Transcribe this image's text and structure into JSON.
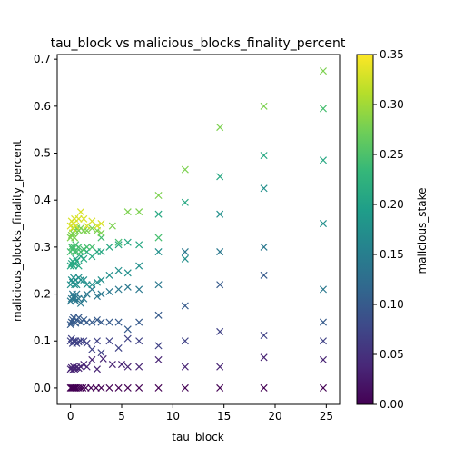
{
  "chart_data": {
    "type": "scatter",
    "title": "tau_block vs malicious_blocks_finality_percent",
    "xlabel": "tau_block",
    "ylabel": "malicious_blocks_finality_percent",
    "xlim": [
      -1.3,
      26.3
    ],
    "ylim": [
      -0.035,
      0.71
    ],
    "xticks": [
      0,
      5,
      10,
      15,
      20,
      25
    ],
    "xtick_labels": [
      "0",
      "5",
      "10",
      "15",
      "20",
      "25"
    ],
    "yticks": [
      0.0,
      0.1,
      0.2,
      0.3,
      0.4,
      0.5,
      0.6,
      0.7
    ],
    "ytick_labels": [
      "0.0",
      "0.1",
      "0.2",
      "0.3",
      "0.4",
      "0.5",
      "0.6",
      "0.7"
    ],
    "marker": "x",
    "grid": false,
    "colorbar": {
      "label": "malicious_stake",
      "colormap": "viridis",
      "range": [
        0.0,
        0.35
      ],
      "ticks": [
        0.0,
        0.05,
        0.1,
        0.15,
        0.2,
        0.25,
        0.3,
        0.35
      ],
      "tick_labels": [
        "0.00",
        "0.05",
        "0.10",
        "0.15",
        "0.20",
        "0.25",
        "0.30",
        "0.35"
      ]
    },
    "colormap_stops": [
      "#440154",
      "#482878",
      "#3e4989",
      "#31688e",
      "#26828e",
      "#1f9e89",
      "#35b779",
      "#6ece58",
      "#b5de2b",
      "#fde725"
    ],
    "series": [
      {
        "malicious_stake": 0.0,
        "points": [
          [
            0.0,
            0.0
          ],
          [
            0.1,
            0.0
          ],
          [
            0.2,
            0.0
          ],
          [
            0.3,
            0.0
          ],
          [
            0.4,
            0.0
          ],
          [
            0.5,
            0.0
          ],
          [
            0.6,
            0.0
          ],
          [
            0.8,
            0.0
          ],
          [
            1.0,
            0.0
          ],
          [
            1.2,
            0.0
          ],
          [
            1.5,
            0.0
          ],
          [
            2.0,
            0.0
          ],
          [
            2.5,
            0.0
          ],
          [
            3.0,
            0.0
          ],
          [
            3.8,
            0.0
          ],
          [
            4.7,
            0.0
          ],
          [
            5.6,
            0.0
          ],
          [
            6.7,
            0.0
          ],
          [
            8.6,
            0.0
          ],
          [
            11.2,
            0.0
          ],
          [
            14.6,
            0.0
          ],
          [
            18.9,
            0.0
          ],
          [
            24.7,
            0.0
          ]
        ]
      },
      {
        "malicious_stake": 0.035,
        "points": [
          [
            0.0,
            0.04
          ],
          [
            0.1,
            0.043
          ],
          [
            0.2,
            0.038
          ],
          [
            0.3,
            0.045
          ],
          [
            0.4,
            0.04
          ],
          [
            0.5,
            0.042
          ],
          [
            0.6,
            0.044
          ],
          [
            0.8,
            0.042
          ],
          [
            1.0,
            0.045
          ],
          [
            1.3,
            0.05
          ],
          [
            1.6,
            0.045
          ],
          [
            2.1,
            0.06
          ],
          [
            2.6,
            0.04
          ],
          [
            3.2,
            0.062
          ],
          [
            4.1,
            0.05
          ],
          [
            5.0,
            0.05
          ],
          [
            5.6,
            0.045
          ],
          [
            6.7,
            0.045
          ],
          [
            8.6,
            0.06
          ],
          [
            11.2,
            0.045
          ],
          [
            14.6,
            0.045
          ],
          [
            18.9,
            0.065
          ],
          [
            24.7,
            0.06
          ]
        ]
      },
      {
        "malicious_stake": 0.07,
        "points": [
          [
            0.0,
            0.1
          ],
          [
            0.1,
            0.105
          ],
          [
            0.2,
            0.095
          ],
          [
            0.3,
            0.1
          ],
          [
            0.4,
            0.098
          ],
          [
            0.5,
            0.1
          ],
          [
            0.6,
            0.095
          ],
          [
            0.8,
            0.098
          ],
          [
            1.0,
            0.1
          ],
          [
            1.3,
            0.1
          ],
          [
            1.6,
            0.095
          ],
          [
            2.1,
            0.082
          ],
          [
            2.6,
            0.1
          ],
          [
            3.0,
            0.075
          ],
          [
            3.8,
            0.1
          ],
          [
            4.7,
            0.085
          ],
          [
            5.6,
            0.105
          ],
          [
            6.7,
            0.1
          ],
          [
            8.6,
            0.09
          ],
          [
            11.2,
            0.1
          ],
          [
            14.6,
            0.12
          ],
          [
            18.9,
            0.112
          ],
          [
            24.7,
            0.1
          ]
        ]
      },
      {
        "malicious_stake": 0.1,
        "points": [
          [
            0.0,
            0.135
          ],
          [
            0.1,
            0.14
          ],
          [
            0.2,
            0.145
          ],
          [
            0.3,
            0.15
          ],
          [
            0.4,
            0.14
          ],
          [
            0.5,
            0.138
          ],
          [
            0.6,
            0.145
          ],
          [
            0.8,
            0.15
          ],
          [
            1.0,
            0.14
          ],
          [
            1.3,
            0.145
          ],
          [
            1.6,
            0.14
          ],
          [
            2.1,
            0.14
          ],
          [
            2.6,
            0.145
          ],
          [
            3.0,
            0.14
          ],
          [
            3.8,
            0.14
          ],
          [
            4.7,
            0.14
          ],
          [
            5.6,
            0.125
          ],
          [
            6.7,
            0.14
          ],
          [
            8.6,
            0.155
          ],
          [
            11.2,
            0.175
          ],
          [
            14.6,
            0.22
          ],
          [
            18.9,
            0.24
          ],
          [
            24.7,
            0.14
          ]
        ]
      },
      {
        "malicious_stake": 0.14,
        "points": [
          [
            0.0,
            0.185
          ],
          [
            0.1,
            0.19
          ],
          [
            0.2,
            0.2
          ],
          [
            0.3,
            0.195
          ],
          [
            0.4,
            0.19
          ],
          [
            0.5,
            0.185
          ],
          [
            0.6,
            0.2
          ],
          [
            0.8,
            0.19
          ],
          [
            1.0,
            0.18
          ],
          [
            1.3,
            0.19
          ],
          [
            1.6,
            0.2
          ],
          [
            2.1,
            0.21
          ],
          [
            2.6,
            0.195
          ],
          [
            3.0,
            0.2
          ],
          [
            3.8,
            0.205
          ],
          [
            4.7,
            0.21
          ],
          [
            5.6,
            0.215
          ],
          [
            6.7,
            0.21
          ],
          [
            8.6,
            0.22
          ],
          [
            11.2,
            0.29
          ],
          [
            14.6,
            0.29
          ],
          [
            18.9,
            0.3
          ],
          [
            24.7,
            0.21
          ]
        ]
      },
      {
        "malicious_stake": 0.175,
        "points": [
          [
            0.0,
            0.22
          ],
          [
            0.1,
            0.23
          ],
          [
            0.2,
            0.225
          ],
          [
            0.3,
            0.235
          ],
          [
            0.4,
            0.22
          ],
          [
            0.5,
            0.23
          ],
          [
            0.6,
            0.22
          ],
          [
            0.8,
            0.235
          ],
          [
            1.0,
            0.23
          ],
          [
            1.3,
            0.23
          ],
          [
            1.6,
            0.22
          ],
          [
            2.1,
            0.22
          ],
          [
            2.6,
            0.225
          ],
          [
            3.0,
            0.23
          ],
          [
            3.8,
            0.24
          ],
          [
            4.7,
            0.25
          ],
          [
            5.6,
            0.245
          ],
          [
            6.7,
            0.26
          ],
          [
            8.6,
            0.29
          ],
          [
            11.2,
            0.275
          ],
          [
            14.6,
            0.37
          ],
          [
            18.9,
            0.425
          ],
          [
            24.7,
            0.35
          ]
        ]
      },
      {
        "malicious_stake": 0.21,
        "points": [
          [
            0.0,
            0.26
          ],
          [
            0.1,
            0.265
          ],
          [
            0.2,
            0.27
          ],
          [
            0.3,
            0.26
          ],
          [
            0.4,
            0.265
          ],
          [
            0.5,
            0.275
          ],
          [
            0.6,
            0.27
          ],
          [
            0.8,
            0.26
          ],
          [
            1.0,
            0.28
          ],
          [
            1.3,
            0.275
          ],
          [
            1.6,
            0.29
          ],
          [
            2.1,
            0.28
          ],
          [
            2.6,
            0.29
          ],
          [
            3.0,
            0.29
          ],
          [
            3.8,
            0.3
          ],
          [
            4.7,
            0.305
          ],
          [
            5.6,
            0.31
          ],
          [
            6.7,
            0.305
          ],
          [
            8.6,
            0.37
          ],
          [
            11.2,
            0.395
          ],
          [
            14.6,
            0.45
          ],
          [
            18.9,
            0.495
          ],
          [
            24.7,
            0.485
          ]
        ]
      },
      {
        "malicious_stake": 0.245,
        "points": [
          [
            0.0,
            0.29
          ],
          [
            0.1,
            0.3
          ],
          [
            0.2,
            0.295
          ],
          [
            0.3,
            0.3
          ],
          [
            0.4,
            0.29
          ],
          [
            0.5,
            0.305
          ],
          [
            0.6,
            0.29
          ],
          [
            0.8,
            0.3
          ],
          [
            1.0,
            0.29
          ],
          [
            1.3,
            0.295
          ],
          [
            1.6,
            0.3
          ],
          [
            2.1,
            0.3
          ],
          [
            3.0,
            0.32
          ],
          [
            4.7,
            0.31
          ],
          [
            8.6,
            0.32
          ],
          [
            24.7,
            0.595
          ]
        ]
      },
      {
        "malicious_stake": 0.28,
        "points": [
          [
            0.0,
            0.32
          ],
          [
            0.1,
            0.325
          ],
          [
            0.2,
            0.33
          ],
          [
            0.3,
            0.34
          ],
          [
            0.4,
            0.32
          ],
          [
            0.5,
            0.335
          ],
          [
            0.6,
            0.34
          ],
          [
            0.8,
            0.335
          ],
          [
            1.0,
            0.34
          ],
          [
            1.3,
            0.335
          ],
          [
            1.6,
            0.335
          ],
          [
            2.1,
            0.34
          ],
          [
            2.6,
            0.335
          ],
          [
            3.0,
            0.33
          ],
          [
            4.1,
            0.345
          ],
          [
            5.6,
            0.375
          ],
          [
            6.7,
            0.375
          ],
          [
            8.6,
            0.41
          ],
          [
            11.2,
            0.465
          ],
          [
            14.6,
            0.555
          ],
          [
            18.9,
            0.6
          ],
          [
            24.7,
            0.675
          ]
        ]
      },
      {
        "malicious_stake": 0.33,
        "points": [
          [
            0.0,
            0.345
          ],
          [
            0.1,
            0.355
          ],
          [
            0.2,
            0.34
          ],
          [
            0.3,
            0.35
          ],
          [
            0.4,
            0.36
          ],
          [
            0.5,
            0.345
          ],
          [
            0.8,
            0.36
          ],
          [
            1.0,
            0.375
          ],
          [
            1.3,
            0.36
          ],
          [
            1.6,
            0.345
          ],
          [
            2.1,
            0.355
          ],
          [
            2.6,
            0.345
          ],
          [
            3.0,
            0.35
          ]
        ]
      }
    ]
  }
}
